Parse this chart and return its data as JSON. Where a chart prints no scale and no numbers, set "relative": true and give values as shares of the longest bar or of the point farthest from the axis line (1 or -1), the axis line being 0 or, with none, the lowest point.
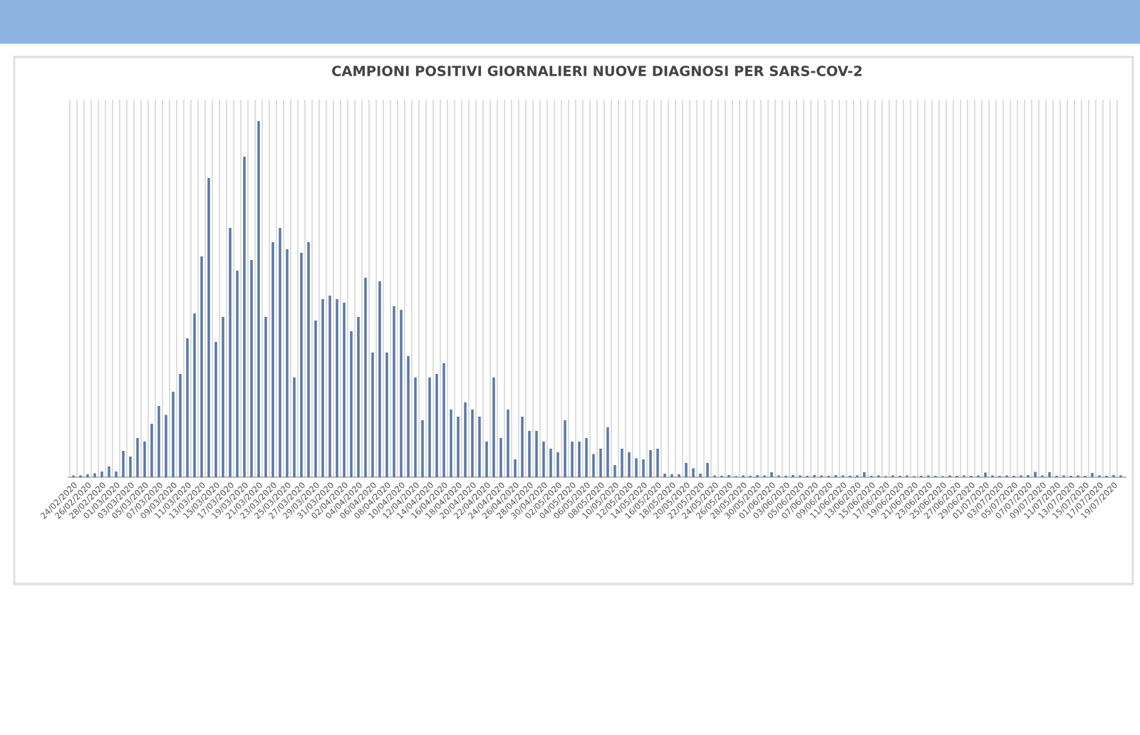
{
  "chart_data": {
    "type": "bar",
    "title": "CAMPIONI POSITIVI GIORNALIERI NUOVE DIAGNOSI PER SARS-COV-2",
    "relative": true,
    "grid": "x",
    "color": "#5a78a8",
    "categories": [
      "24/02/2020",
      null,
      "26/02/2020",
      null,
      "28/02/2020",
      null,
      "01/03/2020",
      null,
      "03/03/2020",
      null,
      "05/03/2020",
      null,
      "07/03/2020",
      null,
      "09/03/2020",
      null,
      "11/03/2020",
      null,
      "13/03/2020",
      null,
      "15/03/2020",
      null,
      "17/03/2020",
      null,
      "19/03/2020",
      null,
      "21/03/2020",
      null,
      "23/03/2020",
      null,
      "25/03/2020",
      null,
      "27/03/2020",
      null,
      "29/03/2020",
      null,
      "31/03/2020",
      null,
      "02/04/2020",
      null,
      "04/04/2020",
      null,
      "06/04/2020",
      null,
      "08/04/2020",
      null,
      "10/04/2020",
      null,
      "12/04/2020",
      null,
      "14/04/2020",
      null,
      "16/04/2020",
      null,
      "18/04/2020",
      null,
      "20/04/2020",
      null,
      "22/04/2020",
      null,
      "24/04/2020",
      null,
      "26/04/2020",
      null,
      "28/04/2020",
      null,
      "30/04/2020",
      null,
      "02/05/2020",
      null,
      "04/05/2020",
      null,
      "06/05/2020",
      null,
      "08/05/2020",
      null,
      "10/05/2020",
      null,
      "12/05/2020",
      null,
      "14/05/2020",
      null,
      "16/05/2020",
      null,
      "18/05/2020",
      null,
      "20/05/2020",
      null,
      "22/05/2020",
      null,
      "24/05/2020",
      null,
      "26/05/2020",
      null,
      "28/05/2020",
      null,
      "30/05/2020",
      null,
      "01/06/2020",
      null,
      "03/06/2020",
      null,
      "05/06/2020",
      null,
      "07/06/2020",
      null,
      "09/06/2020",
      null,
      "11/06/2020",
      null,
      "13/06/2020",
      null,
      "15/06/2020",
      null,
      "17/06/2020",
      null,
      "19/06/2020",
      null,
      "21/06/2020",
      null,
      "23/06/2020",
      null,
      "25/06/2020",
      null,
      "27/06/2020",
      null,
      "29/06/2020",
      null,
      "01/07/2020",
      null,
      "03/07/2020",
      null,
      "05/07/2020",
      null,
      "07/07/2020",
      null,
      "09/07/2020",
      null,
      "11/07/2020",
      null,
      "13/07/2020",
      null,
      "15/07/2020",
      null,
      "17/07/2020",
      null,
      "19/07/2020",
      null
    ],
    "values": [
      0.005,
      0.005,
      0.008,
      0.011,
      0.016,
      0.03,
      0.016,
      0.074,
      0.058,
      0.11,
      0.1,
      0.15,
      0.2,
      0.175,
      0.24,
      0.29,
      0.39,
      0.46,
      0.62,
      0.84,
      0.38,
      0.45,
      0.7,
      0.58,
      0.9,
      0.61,
      1,
      0.45,
      0.66,
      0.7,
      0.64,
      0.28,
      0.63,
      0.66,
      0.44,
      0.5,
      0.51,
      0.5,
      0.49,
      0.41,
      0.45,
      0.56,
      0.35,
      0.55,
      0.35,
      0.48,
      0.47,
      0.34,
      0.28,
      0.16,
      0.28,
      0.29,
      0.32,
      0.19,
      0.17,
      0.21,
      0.19,
      0.17,
      0.1,
      0.28,
      0.11,
      0.19,
      0.05,
      0.17,
      0.13,
      0.13,
      0.1,
      0.08,
      0.07,
      0.16,
      0.1,
      0.1,
      0.11,
      0.065,
      0.08,
      0.14,
      0.034,
      0.08,
      0.07,
      0.053,
      0.05,
      0.076,
      0.08,
      0.01,
      0.008,
      0.008,
      0.04,
      0.025,
      0.01,
      0.04,
      0.005,
      0.004,
      0.006,
      0.003,
      0.005,
      0.004,
      0.006,
      0.005,
      0.014,
      0.005,
      0.004,
      0.006,
      0.005,
      0.004,
      0.006,
      0.005,
      0.004,
      0.006,
      0.005,
      0.004,
      0.005,
      0.014,
      0.004,
      0.005,
      0.003,
      0.005,
      0.004,
      0.005,
      0.003,
      0.004,
      0.005,
      0.004,
      0.003,
      0.005,
      0.004,
      0.005,
      0.004,
      0.005,
      0.013,
      0.005,
      0.004,
      0.005,
      0.004,
      0.005,
      0.006,
      0.015,
      0.005,
      0.014,
      0.004,
      0.005,
      0.004,
      0.005,
      0.004,
      0.012,
      0.005,
      0.004,
      0.006,
      0.005
    ]
  }
}
